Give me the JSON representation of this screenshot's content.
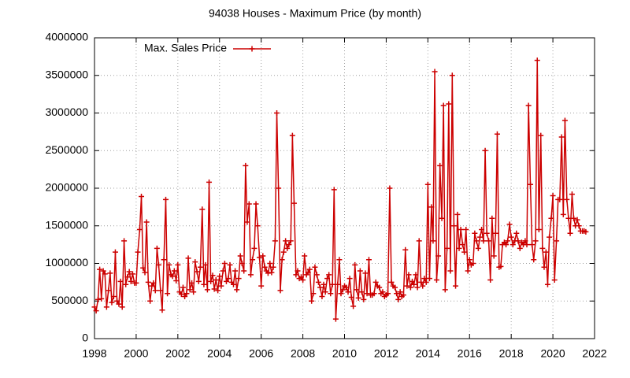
{
  "chart_data": {
    "type": "line",
    "title": "94038 Houses - Maximum Price (by month)",
    "xlim": [
      1998,
      2022
    ],
    "xticks": [
      1998,
      2000,
      2002,
      2004,
      2006,
      2008,
      2010,
      2012,
      2014,
      2016,
      2018,
      2020,
      2022
    ],
    "ylim": [
      0,
      4000000
    ],
    "yticks": [
      0,
      500000,
      1000000,
      1500000,
      2000000,
      2500000,
      3000000,
      3500000,
      4000000
    ],
    "grid": true,
    "legend": "top-left",
    "x": [
      1998.0,
      1998.08,
      1998.17,
      1998.25,
      1998.33,
      1998.42,
      1998.5,
      1998.58,
      1998.67,
      1998.75,
      1998.83,
      1998.92,
      1999.0,
      1999.08,
      1999.17,
      1999.25,
      1999.33,
      1999.42,
      1999.5,
      1999.58,
      1999.67,
      1999.75,
      1999.83,
      1999.92,
      2000.0,
      2000.08,
      2000.17,
      2000.25,
      2000.33,
      2000.42,
      2000.5,
      2000.58,
      2000.67,
      2000.75,
      2000.83,
      2000.92,
      2001.0,
      2001.08,
      2001.17,
      2001.25,
      2001.33,
      2001.42,
      2001.5,
      2001.58,
      2001.67,
      2001.75,
      2001.83,
      2001.92,
      2002.0,
      2002.08,
      2002.17,
      2002.25,
      2002.33,
      2002.42,
      2002.5,
      2002.58,
      2002.67,
      2002.75,
      2002.83,
      2002.92,
      2003.0,
      2003.08,
      2003.17,
      2003.25,
      2003.33,
      2003.42,
      2003.5,
      2003.58,
      2003.67,
      2003.75,
      2003.83,
      2003.92,
      2004.0,
      2004.08,
      2004.17,
      2004.25,
      2004.33,
      2004.42,
      2004.5,
      2004.58,
      2004.67,
      2004.75,
      2004.83,
      2004.92,
      2005.0,
      2005.08,
      2005.17,
      2005.25,
      2005.33,
      2005.42,
      2005.5,
      2005.58,
      2005.67,
      2005.75,
      2005.83,
      2005.92,
      2006.0,
      2006.08,
      2006.17,
      2006.25,
      2006.33,
      2006.42,
      2006.5,
      2006.58,
      2006.67,
      2006.75,
      2006.83,
      2006.92,
      2007.0,
      2007.08,
      2007.17,
      2007.25,
      2007.33,
      2007.42,
      2007.5,
      2007.58,
      2007.67,
      2007.75,
      2007.83,
      2007.92,
      2008.0,
      2008.08,
      2008.17,
      2008.25,
      2008.33,
      2008.42,
      2008.5,
      2008.58,
      2008.67,
      2008.75,
      2008.83,
      2008.92,
      2009.0,
      2009.08,
      2009.17,
      2009.25,
      2009.33,
      2009.42,
      2009.5,
      2009.58,
      2009.67,
      2009.75,
      2009.83,
      2009.92,
      2010.0,
      2010.08,
      2010.17,
      2010.25,
      2010.33,
      2010.42,
      2010.5,
      2010.58,
      2010.67,
      2010.75,
      2010.83,
      2010.92,
      2011.0,
      2011.08,
      2011.17,
      2011.25,
      2011.33,
      2011.42,
      2011.5,
      2011.58,
      2011.67,
      2011.75,
      2011.83,
      2011.92,
      2012.0,
      2012.08,
      2012.17,
      2012.25,
      2012.33,
      2012.42,
      2012.5,
      2012.58,
      2012.67,
      2012.75,
      2012.83,
      2012.92,
      2013.0,
      2013.08,
      2013.17,
      2013.25,
      2013.33,
      2013.42,
      2013.5,
      2013.58,
      2013.67,
      2013.75,
      2013.83,
      2013.92,
      2014.0,
      2014.08,
      2014.17,
      2014.25,
      2014.33,
      2014.42,
      2014.5,
      2014.58,
      2014.67,
      2014.75,
      2014.83,
      2014.92,
      2015.0,
      2015.08,
      2015.17,
      2015.25,
      2015.33,
      2015.42,
      2015.5,
      2015.58,
      2015.67,
      2015.75,
      2015.83,
      2015.92,
      2016.0,
      2016.08,
      2016.17,
      2016.25,
      2016.33,
      2016.42,
      2016.5,
      2016.58,
      2016.67,
      2016.75,
      2016.83,
      2016.92,
      2017.0,
      2017.08,
      2017.17,
      2017.25,
      2017.33,
      2017.42,
      2017.5,
      2017.58,
      2017.67,
      2017.75,
      2017.83,
      2017.92,
      2018.0,
      2018.08,
      2018.17,
      2018.25,
      2018.33,
      2018.42,
      2018.5,
      2018.58,
      2018.67,
      2018.75,
      2018.83,
      2018.92,
      2019.0,
      2019.08,
      2019.17,
      2019.25,
      2019.33,
      2019.42,
      2019.5,
      2019.58,
      2019.67,
      2019.75,
      2019.83,
      2019.92,
      2020.0,
      2020.08,
      2020.17,
      2020.25,
      2020.33,
      2020.42,
      2020.5,
      2020.58,
      2020.67,
      2020.75,
      2020.83,
      2020.92,
      2021.0,
      2021.08,
      2021.17,
      2021.25,
      2021.33,
      2021.42,
      2021.5,
      2021.58
    ],
    "series": [
      {
        "name": "Max. Sales Price",
        "color": "#cc0000",
        "values": [
          420000,
          370000,
          520000,
          920000,
          530000,
          900000,
          860000,
          420000,
          640000,
          870000,
          480000,
          560000,
          1150000,
          500000,
          460000,
          760000,
          420000,
          1300000,
          720000,
          820000,
          890000,
          760000,
          860000,
          740000,
          740000,
          1150000,
          1450000,
          1890000,
          940000,
          880000,
          1550000,
          750000,
          500000,
          700000,
          740000,
          640000,
          1200000,
          980000,
          640000,
          380000,
          1050000,
          1850000,
          600000,
          980000,
          850000,
          830000,
          900000,
          770000,
          980000,
          620000,
          590000,
          680000,
          560000,
          600000,
          1070000,
          650000,
          740000,
          620000,
          1020000,
          890000,
          760000,
          950000,
          1720000,
          720000,
          980000,
          650000,
          2080000,
          760000,
          840000,
          660000,
          780000,
          640000,
          830000,
          700000,
          900000,
          1000000,
          760000,
          800000,
          980000,
          750000,
          720000,
          900000,
          650000,
          800000,
          1100000,
          1000000,
          900000,
          2300000,
          1550000,
          1790000,
          850000,
          1050000,
          1200000,
          1790000,
          1500000,
          1080000,
          700000,
          1100000,
          950000,
          900000,
          870000,
          1000000,
          880000,
          950000,
          1300000,
          3000000,
          2000000,
          640000,
          1050000,
          1150000,
          1300000,
          1200000,
          1250000,
          1300000,
          2700000,
          1800000,
          850000,
          900000,
          800000,
          820000,
          780000,
          1100000,
          850000,
          880000,
          920000,
          500000,
          600000,
          950000,
          850000,
          750000,
          680000,
          560000,
          720000,
          620000,
          800000,
          850000,
          600000,
          720000,
          1980000,
          260000,
          720000,
          1050000,
          600000,
          650000,
          700000,
          680000,
          620000,
          800000,
          550000,
          430000,
          980000,
          650000,
          540000,
          900000,
          620000,
          520000,
          870000,
          600000,
          1050000,
          580000,
          580000,
          600000,
          750000,
          700000,
          680000,
          600000,
          620000,
          560000,
          580000,
          600000,
          2000000,
          750000,
          700000,
          680000,
          600000,
          520000,
          620000,
          560000,
          580000,
          1180000,
          700000,
          850000,
          680000,
          760000,
          720000,
          850000,
          680000,
          1300000,
          750000,
          700000,
          800000,
          750000,
          2050000,
          800000,
          1750000,
          1300000,
          3550000,
          780000,
          1100000,
          2300000,
          1600000,
          3100000,
          650000,
          1200000,
          3120000,
          900000,
          3500000,
          1500000,
          700000,
          1650000,
          1200000,
          1450000,
          1250000,
          1150000,
          1450000,
          900000,
          1050000,
          980000,
          1000000,
          1400000,
          1300000,
          1200000,
          1350000,
          1450000,
          1300000,
          2500000,
          1400000,
          1300000,
          780000,
          1600000,
          1100000,
          1400000,
          2720000,
          950000,
          960000,
          1250000,
          1280000,
          1250000,
          1300000,
          1520000,
          1350000,
          1250000,
          1300000,
          1400000,
          1300000,
          1200000,
          1280000,
          1250000,
          1300000,
          1250000,
          3100000,
          2050000,
          1250000,
          1050000,
          1300000,
          3700000,
          1450000,
          2700000,
          1200000,
          950000,
          1150000,
          720000,
          1350000,
          1600000,
          1900000,
          780000,
          1300000,
          1850000,
          1850000,
          2680000,
          1650000,
          2900000,
          1850000,
          1600000,
          1400000,
          1920000,
          1600000,
          1500000,
          1580000,
          1500000,
          1430000,
          1430000,
          1430000,
          1420000
        ]
      }
    ]
  }
}
